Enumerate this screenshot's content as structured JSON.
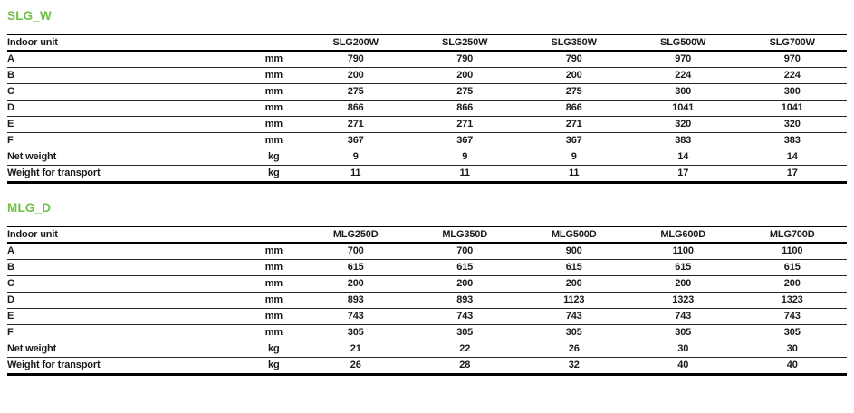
{
  "colors": {
    "title_green": "#71bf44",
    "text": "#1a1a1a",
    "rule_thick": "#000000",
    "rule_thin": "#262626",
    "background": "#ffffff"
  },
  "sections": [
    {
      "title": "SLG_W",
      "table": {
        "header_label": "Indoor unit",
        "columns": [
          "SLG200W",
          "SLG250W",
          "SLG350W",
          "SLG500W",
          "SLG700W"
        ],
        "rows": [
          {
            "label": "A",
            "unit": "mm",
            "values": [
              "790",
              "790",
              "790",
              "970",
              "970"
            ]
          },
          {
            "label": "B",
            "unit": "mm",
            "values": [
              "200",
              "200",
              "200",
              "224",
              "224"
            ]
          },
          {
            "label": "C",
            "unit": "mm",
            "values": [
              "275",
              "275",
              "275",
              "300",
              "300"
            ]
          },
          {
            "label": "D",
            "unit": "mm",
            "values": [
              "866",
              "866",
              "866",
              "1041",
              "1041"
            ]
          },
          {
            "label": "E",
            "unit": "mm",
            "values": [
              "271",
              "271",
              "271",
              "320",
              "320"
            ]
          },
          {
            "label": "F",
            "unit": "mm",
            "values": [
              "367",
              "367",
              "367",
              "383",
              "383"
            ]
          },
          {
            "label": "Net weight",
            "unit": "kg",
            "values": [
              "9",
              "9",
              "9",
              "14",
              "14"
            ]
          },
          {
            "label": "Weight for transport",
            "unit": "kg",
            "values": [
              "11",
              "11",
              "11",
              "17",
              "17"
            ]
          }
        ]
      }
    },
    {
      "title": "MLG_D",
      "table": {
        "header_label": "Indoor unit",
        "columns": [
          "MLG250D",
          "MLG350D",
          "MLG500D",
          "MLG600D",
          "MLG700D"
        ],
        "rows": [
          {
            "label": "A",
            "unit": "mm",
            "values": [
              "700",
              "700",
              "900",
              "1100",
              "1100"
            ]
          },
          {
            "label": "B",
            "unit": "mm",
            "values": [
              "615",
              "615",
              "615",
              "615",
              "615"
            ]
          },
          {
            "label": "C",
            "unit": "mm",
            "values": [
              "200",
              "200",
              "200",
              "200",
              "200"
            ]
          },
          {
            "label": "D",
            "unit": "mm",
            "values": [
              "893",
              "893",
              "1123",
              "1323",
              "1323"
            ]
          },
          {
            "label": "E",
            "unit": "mm",
            "values": [
              "743",
              "743",
              "743",
              "743",
              "743"
            ]
          },
          {
            "label": "F",
            "unit": "mm",
            "values": [
              "305",
              "305",
              "305",
              "305",
              "305"
            ]
          },
          {
            "label": "Net weight",
            "unit": "kg",
            "values": [
              "21",
              "22",
              "26",
              "30",
              "30"
            ]
          },
          {
            "label": "Weight for transport",
            "unit": "kg",
            "values": [
              "26",
              "28",
              "32",
              "40",
              "40"
            ]
          }
        ]
      }
    }
  ]
}
